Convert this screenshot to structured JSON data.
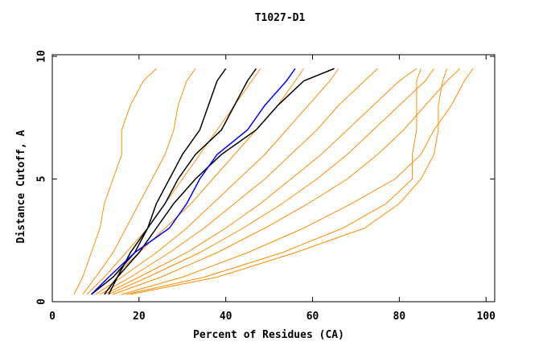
{
  "chart_data": {
    "type": "line",
    "title": "T1027-D1",
    "x_label": "Percent of Residues (CA)",
    "y_label": "Distance Cutoff, A",
    "xlim": [
      0,
      102
    ],
    "ylim": [
      0,
      10
    ],
    "xticks": [
      0,
      20,
      40,
      60,
      80,
      100
    ],
    "yticks": [
      0,
      5,
      10
    ],
    "series": [
      {
        "color": "#ff8c00",
        "x": [
          5,
          7,
          9,
          11,
          12,
          14,
          16,
          16,
          18,
          21,
          24
        ],
        "values": [
          0.3,
          1,
          2,
          3,
          4,
          5,
          6,
          7,
          8,
          9,
          9.5
        ]
      },
      {
        "color": "#ff8c00",
        "x": [
          7,
          10,
          14,
          17,
          20,
          23,
          26,
          28,
          29,
          31,
          33
        ],
        "values": [
          0.3,
          1,
          2,
          3,
          4,
          5,
          6,
          7,
          8,
          9,
          9.5
        ]
      },
      {
        "color": "#ff8c00",
        "x": [
          8,
          12,
          17,
          22,
          26,
          30,
          34,
          38,
          42,
          46,
          48
        ],
        "values": [
          0.3,
          1,
          2,
          3,
          4,
          5,
          6,
          7,
          8,
          9,
          9.5
        ]
      },
      {
        "color": "#ff8c00",
        "x": [
          9,
          14,
          20,
          26,
          32,
          37,
          42,
          47,
          52,
          56,
          58
        ],
        "values": [
          0.3,
          1,
          2,
          3,
          4,
          5,
          6,
          7,
          8,
          9,
          9.5
        ]
      },
      {
        "color": "#ff8c00",
        "x": [
          10,
          16,
          24,
          31,
          37,
          43,
          49,
          54,
          59,
          64,
          66
        ],
        "values": [
          0.3,
          1,
          2,
          3,
          4,
          5,
          6,
          7,
          8,
          9,
          9.5
        ]
      },
      {
        "color": "#ff8c00",
        "x": [
          11,
          18,
          27,
          35,
          42,
          49,
          55,
          61,
          66,
          72,
          75
        ],
        "values": [
          0.3,
          1,
          2,
          3,
          4,
          5,
          6,
          7,
          8,
          9,
          9.5
        ]
      },
      {
        "color": "#ff8c00",
        "x": [
          12,
          20,
          31,
          40,
          48,
          55,
          62,
          68,
          74,
          80,
          84
        ],
        "values": [
          0.3,
          1,
          2,
          3,
          4,
          5,
          6,
          7,
          8,
          9,
          9.5
        ]
      },
      {
        "color": "#ff8c00",
        "x": [
          13,
          22,
          34,
          44,
          53,
          61,
          68,
          74,
          80,
          86,
          88
        ],
        "values": [
          0.3,
          1,
          2,
          3,
          4,
          5,
          6,
          7,
          8,
          9,
          9.5
        ]
      },
      {
        "color": "#ff8c00",
        "x": [
          14,
          25,
          38,
          49,
          59,
          68,
          75,
          81,
          86,
          91,
          94
        ],
        "values": [
          0.3,
          1,
          2,
          3,
          4,
          5,
          6,
          7,
          8,
          9,
          9.5
        ]
      },
      {
        "color": "#ff8c00",
        "x": [
          16,
          30,
          45,
          58,
          69,
          79,
          85,
          88,
          92,
          95,
          97
        ],
        "values": [
          0.3,
          1,
          2,
          3,
          4,
          5,
          6,
          7,
          8,
          9,
          9.5
        ]
      },
      {
        "color": "#ff8c00",
        "x": [
          17,
          35,
          53,
          67,
          77,
          83,
          83,
          84,
          84,
          84,
          85
        ],
        "values": [
          0.3,
          1,
          2,
          3,
          4,
          5,
          6,
          7,
          8,
          9,
          9.5
        ]
      },
      {
        "color": "#ff8c00",
        "x": [
          18,
          38,
          56,
          72,
          80,
          85,
          88,
          89,
          89,
          90,
          91
        ],
        "values": [
          0.3,
          1,
          2,
          3,
          4,
          5,
          6,
          7,
          8,
          9,
          9.5
        ]
      },
      {
        "color": "#000000",
        "x": [
          12,
          15,
          18,
          22,
          24,
          27,
          30,
          34,
          36,
          38,
          40
        ],
        "values": [
          0.3,
          1,
          2,
          3,
          4,
          5,
          6,
          7,
          8,
          9,
          9.5
        ]
      },
      {
        "color": "#000000",
        "x": [
          9,
          14,
          19,
          22,
          26,
          29,
          33,
          39,
          42,
          45,
          47
        ],
        "values": [
          0.3,
          1,
          2,
          3,
          4,
          5,
          6,
          7,
          8,
          9,
          9.5
        ]
      },
      {
        "color": "#000000",
        "x": [
          13,
          15,
          20,
          24,
          28,
          33,
          39,
          47,
          52,
          58,
          65
        ],
        "values": [
          0.3,
          1,
          2,
          3,
          4,
          5,
          6,
          7,
          8,
          9,
          9.5
        ]
      },
      {
        "color": "#0000ff",
        "x": [
          9,
          13,
          19,
          27,
          31,
          34,
          38,
          45,
          49,
          54,
          56
        ],
        "values": [
          0.3,
          1,
          2,
          3,
          4,
          5,
          6,
          7,
          8,
          9,
          9.5
        ]
      }
    ]
  }
}
